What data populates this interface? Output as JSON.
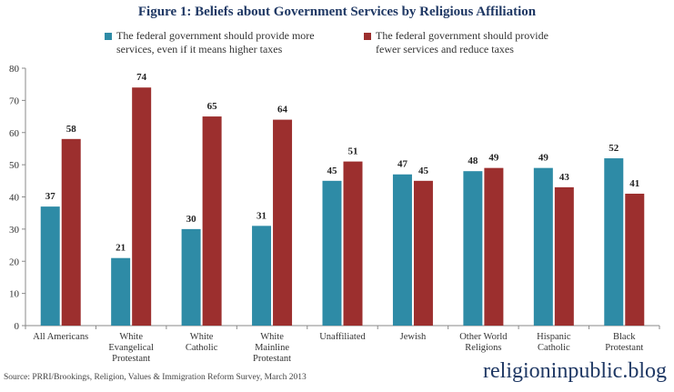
{
  "header": {
    "title": "Figure 1: Beliefs about Government Services by Religious Affiliation"
  },
  "footer": {
    "source": "Source: PRRI/Brookings, Religion, Values & Immigration Reform Survey, March 2013",
    "watermark": "religioninpublic.blog"
  },
  "colors": {
    "series1": "#2e8ba6",
    "series2": "#9c2f2e"
  },
  "chart_data": {
    "type": "bar",
    "title": "Figure 1: Beliefs about Government Services by Religious Affiliation",
    "categories": [
      "All Americans",
      "White Evangelical Protestant",
      "White Catholic",
      "White Mainline Protestant",
      "Unaffiliated",
      "Jewish",
      "Other World Religions",
      "Hispanic Catholic",
      "Black Protestant"
    ],
    "category_lines": [
      [
        "All Americans"
      ],
      [
        "White",
        "Evangelical",
        "Protestant"
      ],
      [
        "White",
        "Catholic"
      ],
      [
        "White",
        "Mainline",
        "Protestant"
      ],
      [
        "Unaffiliated"
      ],
      [
        "Jewish"
      ],
      [
        "Other World",
        "Religions"
      ],
      [
        "Hispanic",
        "Catholic"
      ],
      [
        "Black",
        "Protestant"
      ]
    ],
    "series": [
      {
        "name": "The federal government should provide more services, even if it means higher taxes",
        "legend_lines": "The federal government should provide more\nservices, even if it means higher taxes",
        "values": [
          37,
          21,
          30,
          31,
          45,
          47,
          48,
          49,
          52
        ]
      },
      {
        "name": "The federal government should provide fewer services and reduce taxes",
        "legend_lines": "The federal government should provide\nfewer services and reduce taxes",
        "values": [
          58,
          74,
          65,
          64,
          51,
          45,
          49,
          43,
          41
        ]
      }
    ],
    "ylim": [
      0,
      80
    ],
    "yticks": [
      0,
      10,
      20,
      30,
      40,
      50,
      60,
      70,
      80
    ],
    "xlabel": "",
    "ylabel": "",
    "legend": "top",
    "grid": false
  }
}
